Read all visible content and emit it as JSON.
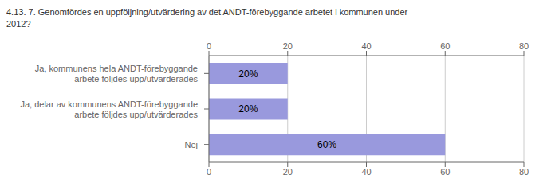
{
  "chart_data": {
    "type": "bar",
    "orientation": "horizontal",
    "title": "4.13. 7. Genomfördes en uppföljning/utvärdering av det ANDT-förebyggande arbetet i kommunen under\n2012?",
    "categories": [
      "Nej",
      "Ja, delar av kommunens ANDT-förebyggande\narbete följdes upp/utvärderades",
      "Ja, kommunens hela ANDT-förebyggande\narbete följdes upp/utvärderades"
    ],
    "values": [
      60,
      20,
      20
    ],
    "value_labels": [
      "60%",
      "20%",
      "20%"
    ],
    "data_labels": true,
    "color": "#9999dd",
    "xlim": [
      0,
      80
    ],
    "xticks": [
      0,
      20,
      40,
      60,
      80
    ],
    "grid": true
  }
}
